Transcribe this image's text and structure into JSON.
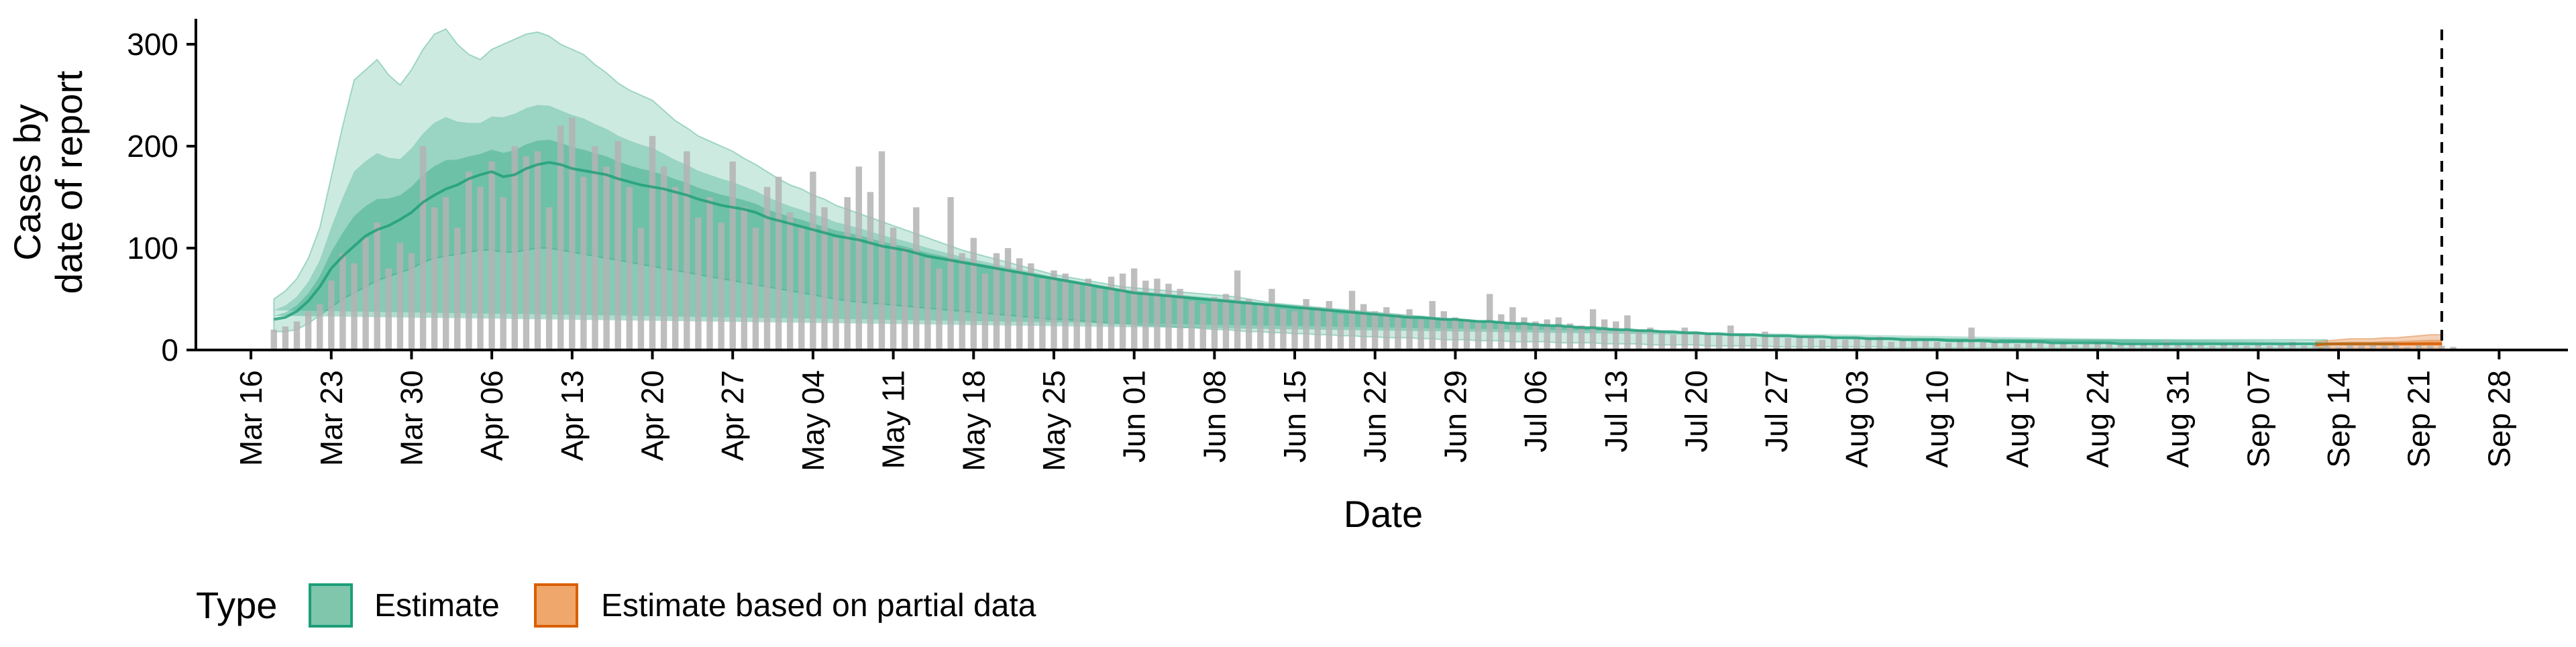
{
  "chart_data": {
    "type": "area",
    "title": "",
    "xlabel": "Date",
    "ylabel_lines": [
      "Cases by",
      "date of report"
    ],
    "y_ticks": [
      "0",
      "100",
      "200",
      "300"
    ],
    "ylim": [
      0,
      325
    ],
    "x_ticks": [
      "Mar 16",
      "Mar 23",
      "Mar 30",
      "Apr 06",
      "Apr 13",
      "Apr 20",
      "Apr 27",
      "May 04",
      "May 11",
      "May 18",
      "May 25",
      "Jun 01",
      "Jun 08",
      "Jun 15",
      "Jun 22",
      "Jun 29",
      "Jul 06",
      "Jul 13",
      "Jul 20",
      "Jul 27",
      "Aug 03",
      "Aug 10",
      "Aug 17",
      "Aug 24",
      "Aug 31",
      "Sep 07",
      "Sep 14",
      "Sep 21",
      "Sep 28"
    ],
    "x_start_date": "2020-03-16",
    "xlim_days": [
      -4.8,
      202
    ],
    "reference_line_date": "2020-09-23",
    "grid": false,
    "legend": {
      "title": "Type",
      "position": "bottom-left",
      "items": [
        {
          "label": "Estimate",
          "fill": "#7fc6ad",
          "stroke": "#1b9e77"
        },
        {
          "label": "Estimate based on partial data",
          "fill": "#f0a76b",
          "stroke": "#d95f02"
        }
      ]
    },
    "colors": {
      "estimate": "#1b9e77",
      "partial": "#d95f02",
      "observed_bars": "#b3b3b3",
      "reference_line": "#000000"
    },
    "observed_start_date": "2020-03-18",
    "observed_cases": [
      20,
      23,
      28,
      38,
      45,
      68,
      95,
      85,
      110,
      125,
      80,
      105,
      95,
      200,
      140,
      150,
      120,
      175,
      160,
      185,
      150,
      200,
      190,
      195,
      140,
      220,
      228,
      170,
      200,
      180,
      205,
      160,
      120,
      210,
      180,
      160,
      195,
      130,
      150,
      125,
      185,
      140,
      120,
      160,
      170,
      135,
      120,
      175,
      140,
      110,
      150,
      180,
      155,
      195,
      120,
      100,
      140,
      90,
      80,
      150,
      95,
      110,
      75,
      95,
      100,
      90,
      85,
      70,
      78,
      75,
      65,
      70,
      60,
      72,
      75,
      80,
      68,
      70,
      65,
      60,
      48,
      45,
      52,
      55,
      78,
      50,
      45,
      60,
      40,
      38,
      50,
      42,
      48,
      35,
      58,
      45,
      38,
      42,
      35,
      40,
      30,
      48,
      38,
      32,
      30,
      28,
      55,
      35,
      42,
      32,
      28,
      30,
      32,
      26,
      24,
      40,
      30,
      28,
      34,
      20,
      22,
      18,
      15,
      22,
      18,
      16,
      15,
      24,
      16,
      12,
      18,
      14,
      12,
      14,
      13,
      10,
      12,
      10,
      11,
      12,
      13,
      8,
      10,
      9,
      9,
      8,
      7,
      9,
      22,
      8,
      10,
      7,
      6,
      8,
      7,
      6,
      7,
      5,
      6,
      8,
      7,
      5,
      6,
      6,
      5,
      9,
      5,
      6,
      5,
      4,
      6,
      5,
      4,
      5,
      4,
      5,
      8,
      4,
      5,
      4,
      3,
      5,
      4,
      6,
      4,
      5,
      3,
      5,
      4,
      4,
      3
    ],
    "estimate_start_date": "2020-03-18",
    "estimate_median": [
      30,
      32,
      38,
      48,
      62,
      80,
      92,
      102,
      112,
      118,
      122,
      128,
      135,
      145,
      152,
      158,
      162,
      168,
      172,
      175,
      170,
      172,
      178,
      182,
      184,
      182,
      178,
      176,
      174,
      172,
      168,
      165,
      162,
      160,
      158,
      155,
      152,
      148,
      145,
      142,
      140,
      138,
      135,
      130,
      127,
      124,
      121,
      118,
      115,
      112,
      110,
      108,
      105,
      102,
      100,
      98,
      95,
      92,
      90,
      88,
      86,
      84,
      82,
      80,
      78,
      76,
      74,
      72,
      70,
      68,
      66,
      64,
      62,
      60,
      58,
      56,
      55,
      54,
      53,
      52,
      51,
      50,
      49,
      48,
      47,
      46,
      45,
      44,
      43,
      42,
      41,
      40,
      39,
      38,
      37,
      36,
      35,
      34,
      33,
      32,
      32,
      31,
      30,
      30,
      29,
      28,
      28,
      27,
      26,
      26,
      25,
      24,
      24,
      23,
      22,
      22,
      21,
      20,
      20,
      19,
      19,
      18,
      18,
      17,
      17,
      16,
      16,
      15,
      15,
      15,
      14,
      14,
      14,
      13,
      13,
      13,
      12,
      12,
      12,
      11,
      11,
      11,
      10,
      10,
      10,
      10,
      9,
      9,
      9,
      9,
      8,
      8,
      8,
      8,
      8,
      7,
      7,
      7,
      7,
      7,
      7,
      6,
      6,
      6,
      6,
      6,
      6,
      6,
      6,
      6,
      6,
      6,
      6,
      6,
      6,
      6,
      6,
      6,
      6,
      6,
      6,
      6,
      6,
      6,
      6,
      6
    ],
    "estimate_upper90": [
      50,
      58,
      70,
      90,
      120,
      170,
      220,
      265,
      275,
      285,
      270,
      260,
      275,
      295,
      310,
      315,
      300,
      290,
      285,
      295,
      300,
      305,
      310,
      312,
      308,
      300,
      295,
      290,
      280,
      272,
      262,
      255,
      250,
      245,
      235,
      225,
      218,
      210,
      205,
      200,
      195,
      188,
      182,
      175,
      168,
      162,
      158,
      152,
      148,
      142,
      138,
      134,
      130,
      126,
      122,
      118,
      114,
      110,
      106,
      102,
      98,
      95,
      92,
      89,
      86,
      83,
      80,
      77,
      74,
      72,
      70,
      68,
      66,
      64,
      62,
      61,
      60,
      59,
      58,
      57,
      56,
      55,
      54,
      53,
      52,
      50,
      48,
      46,
      45,
      44,
      43,
      42,
      41,
      40,
      39,
      38,
      37,
      36,
      35,
      34,
      33,
      32,
      31,
      30,
      29,
      28,
      28,
      27,
      26,
      25,
      24,
      24,
      23,
      22,
      22,
      21,
      20,
      20,
      19,
      19,
      18,
      18,
      17,
      17,
      16,
      16,
      15,
      15,
      14,
      14,
      14,
      13,
      13,
      13,
      12,
      12,
      12,
      11,
      11,
      11,
      11,
      10,
      10,
      10,
      10,
      10,
      10,
      10,
      10,
      10,
      10,
      10,
      10,
      10,
      10,
      10,
      10,
      10,
      10,
      10,
      10,
      10,
      10,
      10,
      10,
      10,
      10,
      10,
      10,
      10,
      10,
      10,
      10,
      10,
      10,
      10,
      10,
      10,
      10,
      10
    ],
    "estimate_lower90": [
      18,
      18,
      20,
      26,
      34,
      42,
      50,
      56,
      62,
      68,
      72,
      76,
      80,
      86,
      90,
      92,
      94,
      96,
      98,
      98,
      96,
      96,
      98,
      100,
      100,
      98,
      96,
      94,
      92,
      90,
      88,
      86,
      84,
      82,
      80,
      78,
      76,
      74,
      72,
      70,
      68,
      66,
      64,
      62,
      60,
      58,
      56,
      54,
      52,
      50,
      48,
      47,
      46,
      45,
      44,
      43,
      42,
      41,
      40,
      39,
      38,
      37,
      36,
      35,
      34,
      33,
      32,
      31,
      30,
      30,
      29,
      28,
      27,
      26,
      26,
      25,
      24,
      24,
      23,
      22,
      22,
      21,
      20,
      20,
      19,
      18,
      18,
      17,
      17,
      16,
      16,
      15,
      15,
      14,
      14,
      13,
      13,
      12,
      12,
      12,
      11,
      11,
      10,
      10,
      10,
      9,
      9,
      9,
      8,
      8,
      8,
      8,
      7,
      7,
      7,
      7,
      6,
      6,
      6,
      6,
      5,
      5,
      5,
      5,
      5,
      4,
      4,
      4,
      4,
      4,
      4,
      3,
      3,
      3,
      3,
      3,
      3,
      3,
      3,
      3,
      3,
      2,
      2,
      2,
      2,
      2,
      2,
      2,
      2,
      2,
      2,
      2,
      2,
      2,
      2,
      2,
      2,
      2,
      2,
      2,
      2,
      2,
      2,
      2,
      2,
      2,
      2,
      2,
      2,
      2,
      2,
      2,
      2,
      2,
      2,
      2,
      2,
      2,
      2,
      2
    ],
    "partial_start_date": "2020-09-12",
    "partial_median": [
      5,
      6,
      6,
      6,
      6,
      6,
      6,
      6,
      6,
      6,
      6,
      6
    ],
    "partial_upper90": [
      8,
      9,
      10,
      11,
      11,
      11,
      12,
      12,
      13,
      14,
      15,
      15
    ],
    "partial_lower90": [
      2,
      2,
      2,
      2,
      2,
      2,
      2,
      2,
      2,
      2,
      2,
      2
    ]
  }
}
